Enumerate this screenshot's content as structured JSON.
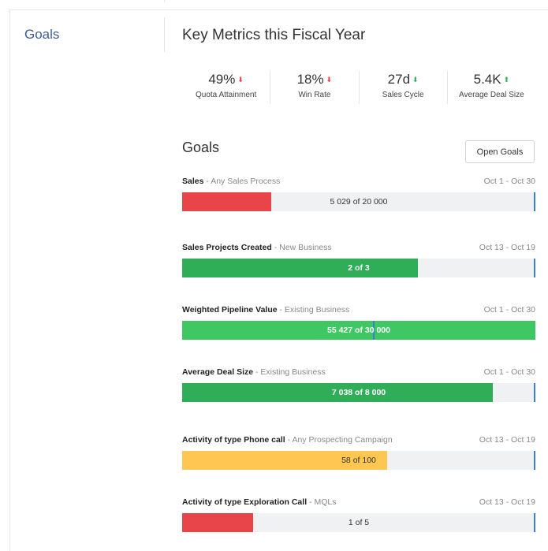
{
  "sidebar": {
    "title": "Goals"
  },
  "page": {
    "title": "Key Metrics this Fiscal Year"
  },
  "metrics": [
    {
      "value": "49%",
      "label": "Quota Attainment",
      "trend": "down",
      "trend_color": "#e8454a",
      "icon": "arrow-down-icon"
    },
    {
      "value": "18%",
      "label": "Win Rate",
      "trend": "down",
      "trend_color": "#e8454a",
      "icon": "arrow-down-icon"
    },
    {
      "value": "27d",
      "label": "Sales Cycle",
      "trend": "down",
      "trend_color": "#2fae57",
      "icon": "arrow-down-icon"
    },
    {
      "value": "5.4K",
      "label": "Average Deal Size",
      "trend": "up",
      "trend_color": "#2fae57",
      "icon": "arrow-up-icon"
    }
  ],
  "goals_section": {
    "title": "Goals",
    "open_button": "Open Goals"
  },
  "goals": [
    {
      "name": "Sales",
      "sub": " - Any Sales Process",
      "dates": "Oct 1 - Oct 30",
      "progress_text": "5 029 of 20 000",
      "current": 5029,
      "target": 20000,
      "color": "#e8454a"
    },
    {
      "name": "Sales Projects Created",
      "sub": " - New Business",
      "dates": "Oct 13 - Oct 19",
      "progress_text": "2 of 3",
      "current": 2,
      "target": 3,
      "color": "#2fae57"
    },
    {
      "name": "Weighted Pipeline Value",
      "sub": " - Existing Business",
      "dates": "Oct 1 - Oct 30",
      "progress_text": "55 427 of 30 000",
      "current": 55427,
      "target": 30000,
      "color": "#3fc763"
    },
    {
      "name": "Average Deal Size",
      "sub": " - Existing Business",
      "dates": "Oct 1 - Oct 30",
      "progress_text": "7 038 of 8 000",
      "current": 7038,
      "target": 8000,
      "color": "#2fae57"
    },
    {
      "name": "Activity of type Phone call",
      "sub": " - Any Prospecting Campaign",
      "dates": "Oct 13 - Oct 19",
      "progress_text": "58 of 100",
      "current": 58,
      "target": 100,
      "color": "#fdc752"
    },
    {
      "name": "Activity of type Exploration Call",
      "sub": " - MQLs",
      "dates": "Oct 13 - Oct 19",
      "progress_text": "1 of 5",
      "current": 1,
      "target": 5,
      "color": "#e8454a"
    }
  ],
  "colors": {
    "accent": "#3b5f94",
    "target_marker": "#3b7ddd",
    "track": "#f0f1f3"
  }
}
